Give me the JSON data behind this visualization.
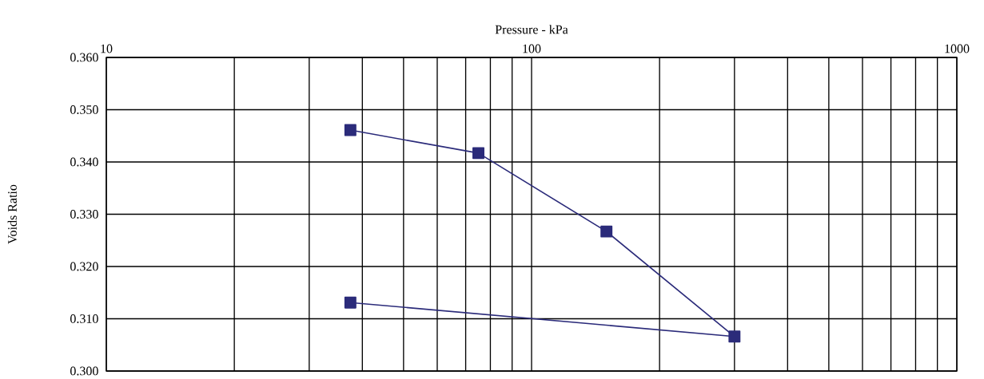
{
  "chart_data": {
    "type": "line",
    "xlabel": "Pressure - kPa",
    "ylabel": "Voids Ratio",
    "log": "x",
    "grid": true,
    "marker": "square",
    "line_style": "solid",
    "xlim": [
      10,
      1000
    ],
    "xticks": [
      10,
      100,
      1000
    ],
    "ylim": [
      0.3,
      0.36
    ],
    "yticks": [
      {
        "value": 0.3,
        "label": "0.300"
      },
      {
        "value": 0.31,
        "label": "0.310"
      },
      {
        "value": 0.32,
        "label": "0.320"
      },
      {
        "value": 0.33,
        "label": "0.330"
      },
      {
        "value": 0.34,
        "label": "0.340"
      },
      {
        "value": 0.35,
        "label": "0.350"
      },
      {
        "value": 0.36,
        "label": "0.360"
      }
    ],
    "series": [
      {
        "color": "#2b2b7a",
        "x": [
          37.5,
          75,
          150,
          300,
          37.5
        ],
        "values": [
          0.3461,
          0.3417,
          0.3267,
          0.3066,
          0.3131
        ]
      }
    ]
  }
}
